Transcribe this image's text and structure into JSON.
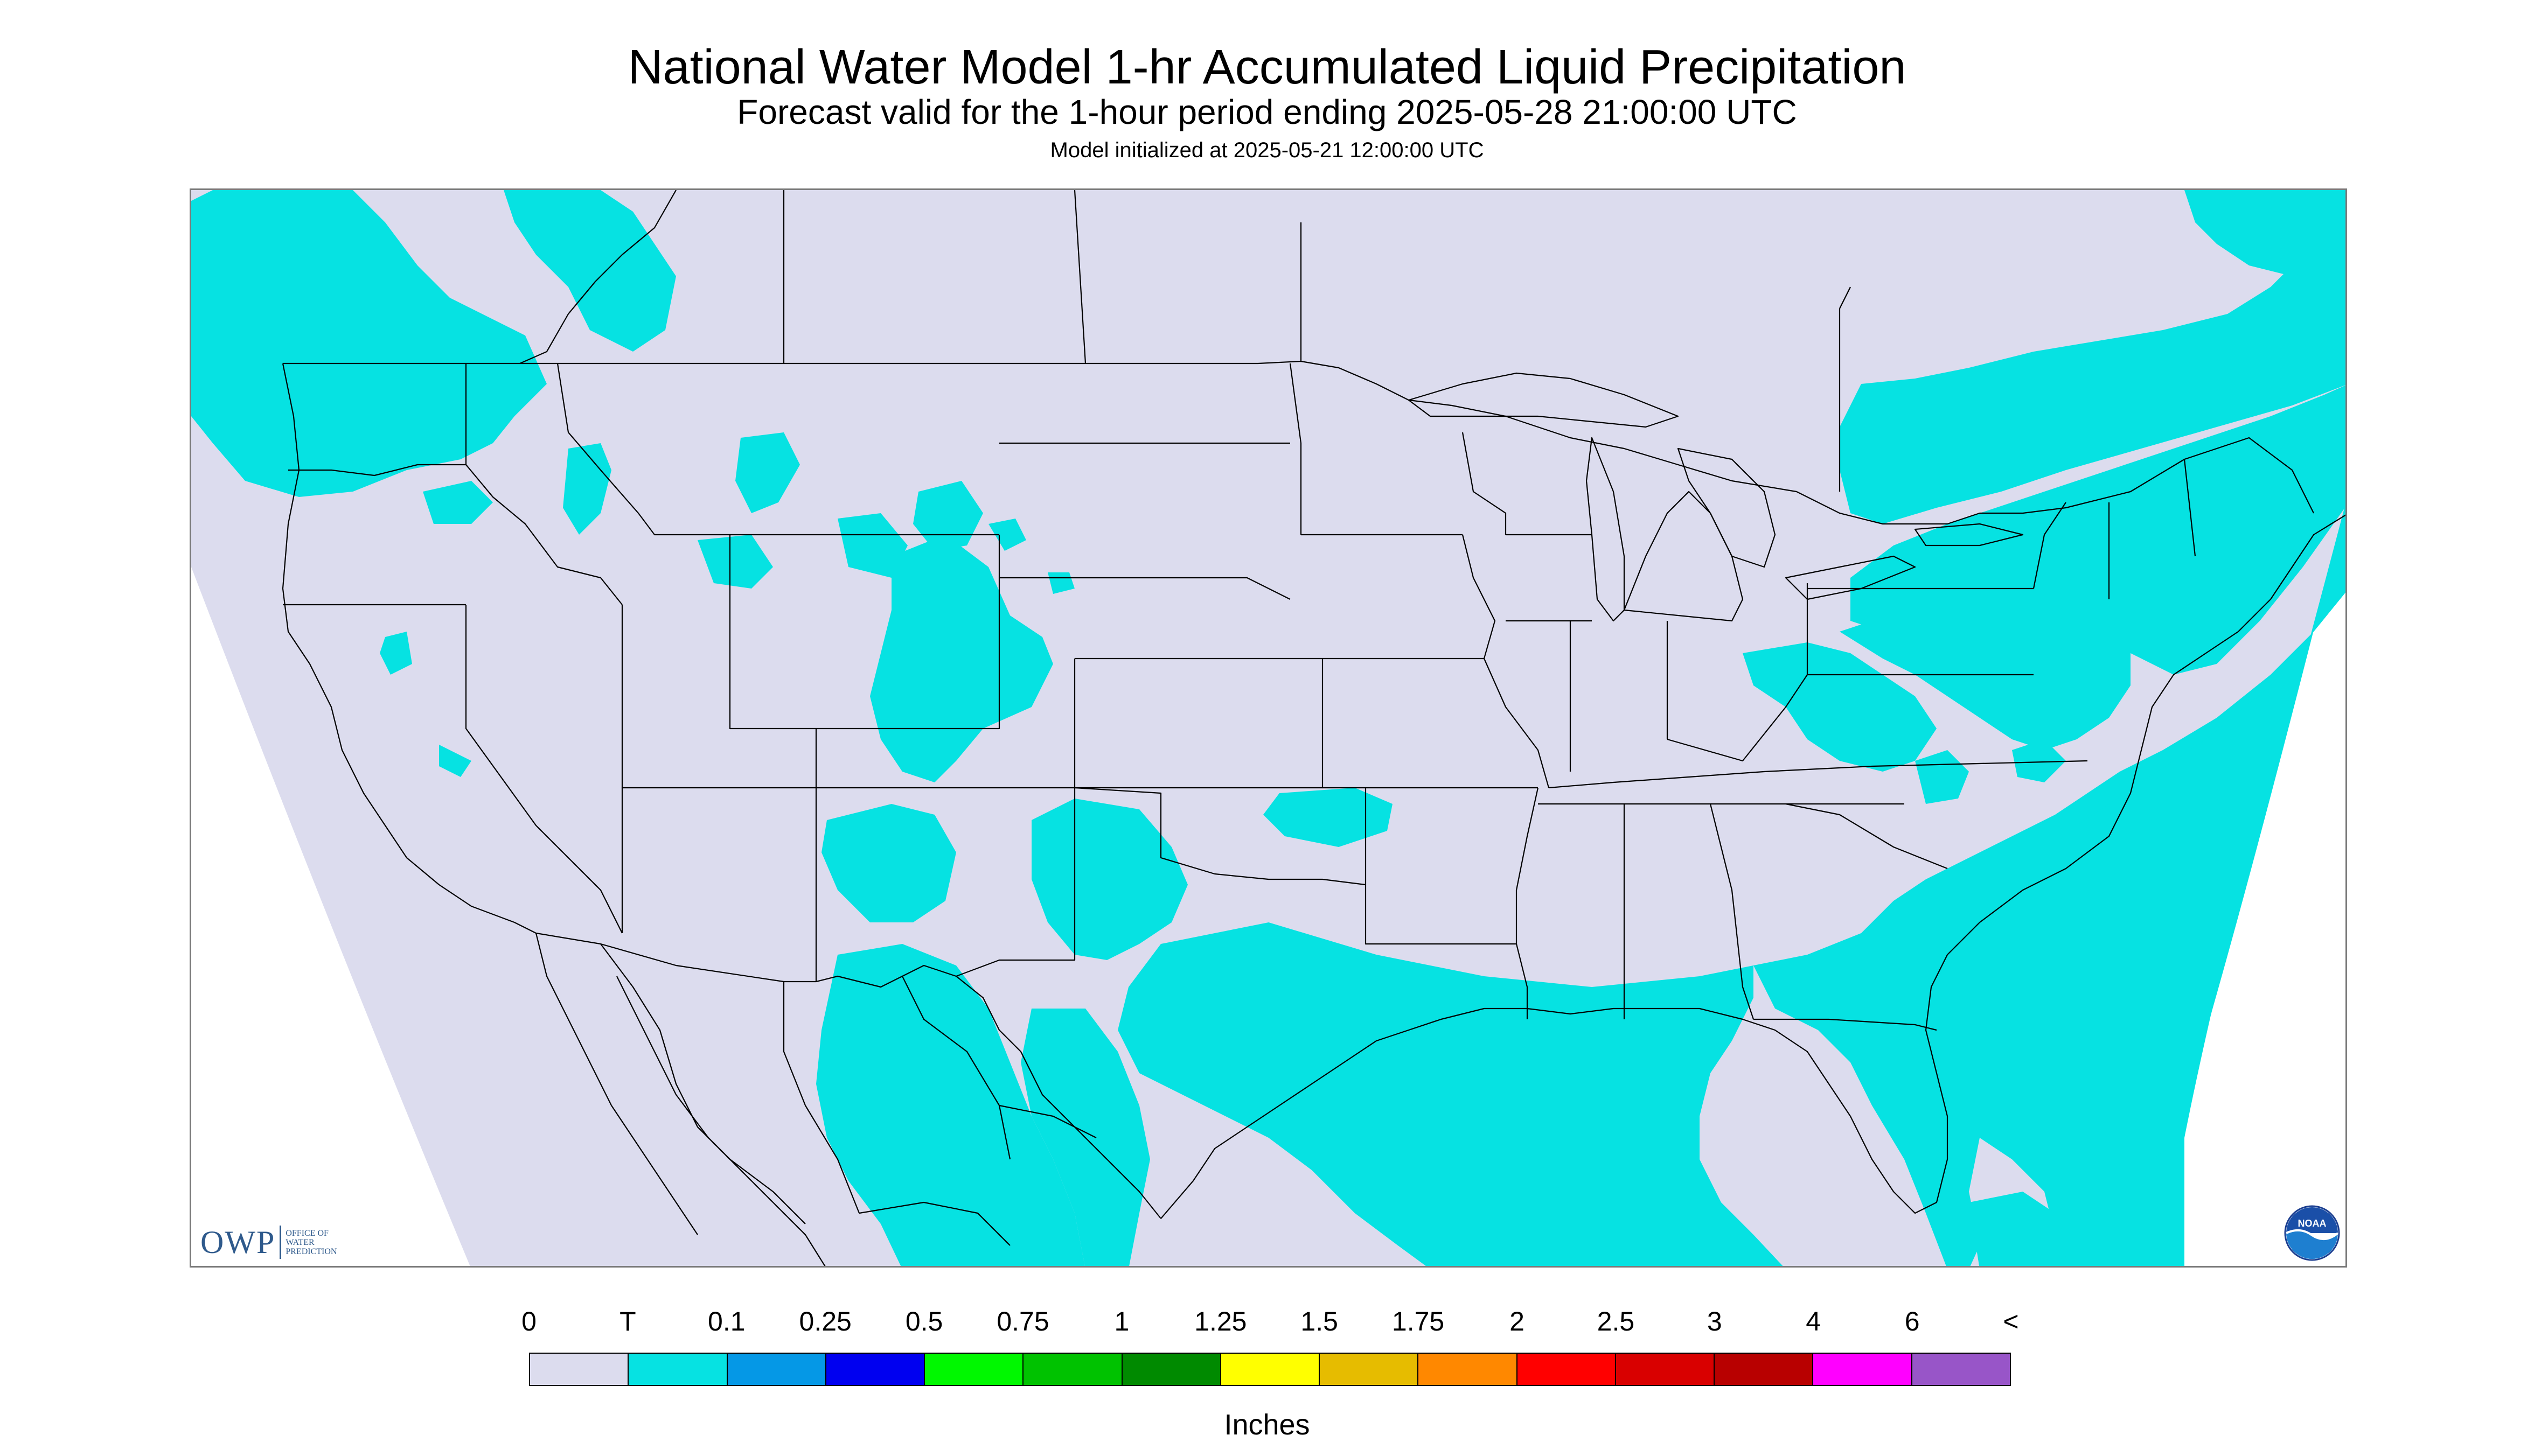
{
  "header": {
    "title": "National Water Model 1-hr Accumulated Liquid Precipitation",
    "subtitle": "Forecast valid for the 1-hour period ending 2025-05-28 21:00:00 UTC",
    "init": "Model initialized at 2025-05-21 12:00:00 UTC"
  },
  "map": {
    "background_color": "#dcdcee",
    "precip_color": "#06e2e2",
    "border_color": "#000000",
    "outside_color": "#ffffff"
  },
  "logos": {
    "owp_big": "OWP",
    "owp_small": "OFFICE OF\nWATER\nPREDICTION",
    "noaa_text": "NOAA"
  },
  "legend": {
    "unit": "Inches",
    "labels": [
      "0",
      "T",
      "0.1",
      "0.25",
      "0.5",
      "0.75",
      "1",
      "1.25",
      "1.5",
      "1.75",
      "2",
      "2.5",
      "3",
      "4",
      "6",
      "<"
    ],
    "colors": [
      "#dcdcee",
      "#06e2e2",
      "#0598e6",
      "#0000f0",
      "#00f800",
      "#00c200",
      "#008a00",
      "#ffff00",
      "#e6bc00",
      "#ff8800",
      "#ff0000",
      "#d90000",
      "#b80000",
      "#ff00ff",
      "#9855c8"
    ]
  }
}
